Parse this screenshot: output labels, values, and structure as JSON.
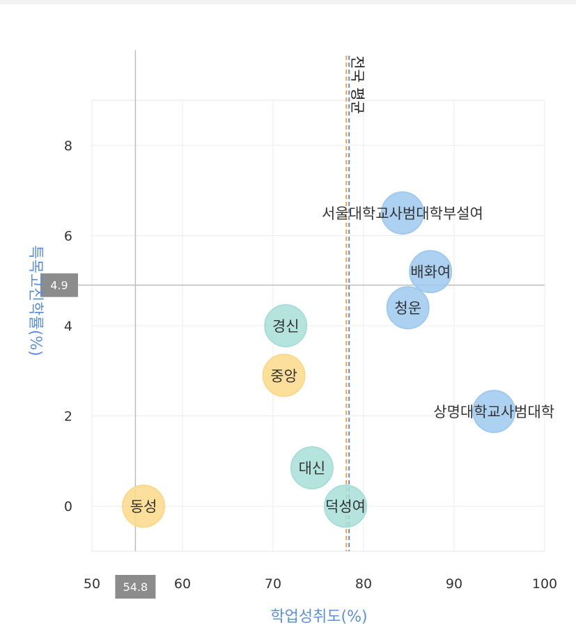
{
  "chart_data": {
    "type": "bubble-scatter",
    "xlabel": "학업성취도(%)",
    "ylabel": "특목고진학률(%)",
    "xlim": [
      50,
      100
    ],
    "ylim": [
      -1,
      9
    ],
    "xticks": [
      "50",
      "60",
      "70",
      "80",
      "90",
      "100"
    ],
    "yticks": [
      "0",
      "2",
      "4",
      "6",
      "8"
    ],
    "grid": true,
    "points": [
      {
        "name": "서울대학교사범대학부설여",
        "x": 84.3,
        "y": 6.5,
        "color": "#9fc9ef"
      },
      {
        "name": "배화여",
        "x": 87.4,
        "y": 5.2,
        "color": "#9fc9ef"
      },
      {
        "name": "청운",
        "x": 84.9,
        "y": 4.4,
        "color": "#9fc9ef"
      },
      {
        "name": "상명대학교사범대학",
        "x": 94.4,
        "y": 2.1,
        "color": "#9fc9ef"
      },
      {
        "name": "경신",
        "x": 71.4,
        "y": 4.0,
        "color": "#a8ded8"
      },
      {
        "name": "대신",
        "x": 74.3,
        "y": 0.85,
        "color": "#a8ded8"
      },
      {
        "name": "덕성여",
        "x": 78.0,
        "y": 0.0,
        "color": "#a8ded8"
      },
      {
        "name": "중앙",
        "x": 71.2,
        "y": 2.9,
        "color": "#fbd98a"
      },
      {
        "name": "동성",
        "x": 55.7,
        "y": 0.0,
        "color": "#fbd98a"
      }
    ],
    "reference_lines": {
      "x_value": 54.8,
      "x_label": "54.8",
      "y_value": 4.9,
      "y_label": "4.9"
    },
    "mean_lines": [
      {
        "x": 78.1,
        "color": "#e8a33a"
      },
      {
        "x": 78.4,
        "color": "#6b8cc7"
      }
    ],
    "mean_label": "전국 평균"
  }
}
